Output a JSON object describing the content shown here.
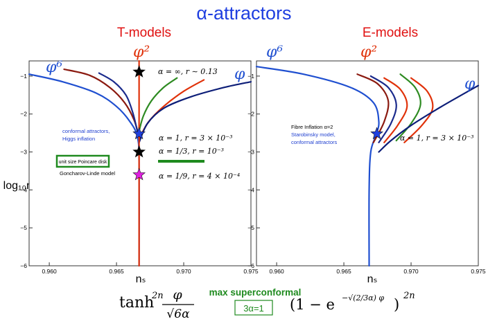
{
  "page_title": "α-attractors",
  "shared_ylabel": "log₁₀r",
  "chart_data": [
    {
      "type": "line",
      "title": "T-models",
      "xlabel": "nₛ",
      "xlim": [
        0.9585,
        0.975
      ],
      "ylim": [
        -6,
        -0.6
      ],
      "xticks": [
        0.96,
        0.965,
        0.97,
        0.975
      ],
      "xtick_labels": [
        "0.960",
        "0.965",
        "0.970",
        "0.975"
      ],
      "yticks": [
        -1,
        -2,
        -3,
        -4,
        -5,
        -6
      ],
      "ytick_labels": [
        "−1",
        "−2",
        "−3",
        "−4",
        "−5",
        "−6"
      ],
      "grid": false,
      "series": [
        {
          "color": "#1f4fd0",
          "x": [
            0.9585,
            0.961,
            0.9635,
            0.965,
            0.966,
            0.96655,
            0.96668,
            0.96668
          ],
          "y": [
            -0.95,
            -1.15,
            -1.45,
            -1.8,
            -2.2,
            -2.6,
            -3.3,
            -6.0
          ]
        },
        {
          "color": "#8b1a10",
          "x": [
            0.9611,
            0.963,
            0.9645,
            0.9656,
            0.9663,
            0.96668
          ],
          "y": [
            -0.82,
            -0.98,
            -1.3,
            -1.7,
            -2.15,
            -2.6
          ]
        },
        {
          "color": "#1a2a8c",
          "x": [
            0.9637,
            0.9648,
            0.9657,
            0.9662,
            0.96655
          ],
          "y": [
            -0.92,
            -1.15,
            -1.5,
            -1.95,
            -2.45
          ]
        },
        {
          "color": "#2e8b22",
          "x": [
            0.9695,
            0.9685,
            0.9676,
            0.967,
            0.96668
          ],
          "y": [
            -1.05,
            -1.3,
            -1.65,
            -2.05,
            -2.45
          ]
        },
        {
          "color": "#e0320a",
          "x": [
            0.9715,
            0.97,
            0.9685,
            0.9674,
            0.96668
          ],
          "y": [
            -1.1,
            -1.4,
            -1.8,
            -2.2,
            -2.65
          ]
        },
        {
          "color": "#0d1e78",
          "x": [
            0.975,
            0.973,
            0.9705,
            0.9685,
            0.9673,
            0.96668
          ],
          "y": [
            -1.15,
            -1.3,
            -1.55,
            -1.85,
            -2.25,
            -2.75
          ]
        },
        {
          "color": "#e0320a",
          "x": [
            0.96668,
            0.96668
          ],
          "y": [
            -0.6,
            -6.0
          ]
        }
      ],
      "markers": [
        {
          "x": 0.96668,
          "y": -0.89,
          "color": "#000000"
        },
        {
          "x": 0.96668,
          "y": -2.52,
          "color": "#2040e0"
        },
        {
          "x": 0.96668,
          "y": -3.0,
          "color": "#000000"
        },
        {
          "x": 0.96668,
          "y": -3.6,
          "color": "#e020e0"
        }
      ],
      "annotations": [
        {
          "key": "phi6",
          "text": "φ⁶",
          "color": "#1f4fd0"
        },
        {
          "key": "phi2",
          "text": "φ²",
          "color": "#e0320a"
        },
        {
          "key": "phi",
          "text": "φ",
          "color": "#1f4fd0"
        },
        {
          "key": "a_inf",
          "text": "α = ∞,  r ∼ 0.13",
          "color": "#000000"
        },
        {
          "key": "a_1",
          "text": "α = 1,  r = 3 × 10⁻³",
          "color": "#000000"
        },
        {
          "key": "a_13",
          "text": "α = 1/3,  r = 10⁻³",
          "color": "#000000"
        },
        {
          "key": "a_19",
          "text": "α = 1/9,  r = 4 × 10⁻⁴",
          "color": "#000000"
        },
        {
          "key": "conformal",
          "text": "conformal attractors,",
          "color": "#1f3fd0"
        },
        {
          "key": "higgs",
          "text": "Higgs inflation",
          "color": "#1f3fd0"
        },
        {
          "key": "poincare",
          "text": "unit size Poincare disk",
          "color": "#000000"
        },
        {
          "key": "goncharov",
          "text": "Goncharov-Linde model",
          "color": "#000000"
        }
      ]
    },
    {
      "type": "line",
      "title": "E-models",
      "xlabel": "nₛ",
      "xlim": [
        0.9585,
        0.975
      ],
      "ylim": [
        -6,
        -0.6
      ],
      "xticks": [
        0.96,
        0.965,
        0.97,
        0.975
      ],
      "xtick_labels": [
        "0.960",
        "0.965",
        "0.970",
        "0.975"
      ],
      "yticks": [
        -1,
        -2,
        -3,
        -4,
        -5,
        -6
      ],
      "ytick_labels": [
        "−1",
        "−2",
        "−3",
        "−4",
        "−5",
        "−6"
      ],
      "grid": false,
      "series": [
        {
          "color": "#1f4fd0",
          "x": [
            0.9585,
            0.962,
            0.9655,
            0.9672,
            0.9676,
            0.9674,
            0.967,
            0.96688,
            0.96688
          ],
          "y": [
            -0.75,
            -0.95,
            -1.3,
            -1.7,
            -2.2,
            -2.55,
            -3.0,
            -4.0,
            -6.0
          ]
        },
        {
          "color": "#8b1a10",
          "x": [
            0.966,
            0.9675,
            0.9683,
            0.968,
            0.9672
          ],
          "y": [
            -0.95,
            -1.2,
            -1.65,
            -2.2,
            -2.75
          ]
        },
        {
          "color": "#1a2a8c",
          "x": [
            0.967,
            0.9683,
            0.9689,
            0.9685,
            0.9676
          ],
          "y": [
            -1.0,
            -1.3,
            -1.75,
            -2.25,
            -2.75
          ]
        },
        {
          "color": "#e0320a",
          "x": [
            0.968,
            0.9692,
            0.9697,
            0.969,
            0.968
          ],
          "y": [
            -1.05,
            -1.35,
            -1.8,
            -2.3,
            -2.75
          ]
        },
        {
          "color": "#2e8b22",
          "x": [
            0.9692,
            0.9703,
            0.9707,
            0.97,
            0.9689
          ],
          "y": [
            -0.95,
            -1.3,
            -1.75,
            -2.25,
            -2.7
          ]
        },
        {
          "color": "#e0320a",
          "x": [
            0.97,
            0.9712,
            0.9716,
            0.9708,
            0.9695
          ],
          "y": [
            -1.05,
            -1.4,
            -1.85,
            -2.3,
            -2.75
          ]
        },
        {
          "color": "#0d1e78",
          "x": [
            0.975,
            0.9735,
            0.9718,
            0.97,
            0.9685,
            0.9676
          ],
          "y": [
            -1.25,
            -1.55,
            -1.9,
            -2.3,
            -2.7,
            -3.0
          ]
        }
      ],
      "markers": [
        {
          "x": 0.96745,
          "y": -2.52,
          "color": "#2040e0"
        }
      ],
      "annotations": [
        {
          "key": "phi6",
          "text": "φ⁶",
          "color": "#1f4fd0"
        },
        {
          "key": "phi2",
          "text": "φ²",
          "color": "#e0320a"
        },
        {
          "key": "phi",
          "text": "φ",
          "color": "#1f4fd0"
        },
        {
          "key": "a_1",
          "text": "α = 1,  r = 3 × 10⁻³",
          "color": "#000000"
        },
        {
          "key": "fibre",
          "text": "Fibre Inflation α=2",
          "color": "#000000"
        },
        {
          "key": "starobinsky",
          "text": "Starobinsky model,",
          "color": "#1f3fd0"
        },
        {
          "key": "conformal",
          "text": "conformal attractors",
          "color": "#1f3fd0"
        }
      ]
    }
  ],
  "formulas": {
    "t_prefix": "tanh",
    "t_exp": "2n",
    "t_num": "φ",
    "t_den": "√6α",
    "max_label": "max superconformal",
    "box_label": "3α=1",
    "e_open": "(1 − e",
    "e_exp": "−√(2/3α) φ",
    "e_close": ")",
    "e_pow": "2n"
  },
  "colors": {
    "title_blue": "#1f3fe0",
    "title_red": "#e01010",
    "green": "#1e8a1e"
  }
}
